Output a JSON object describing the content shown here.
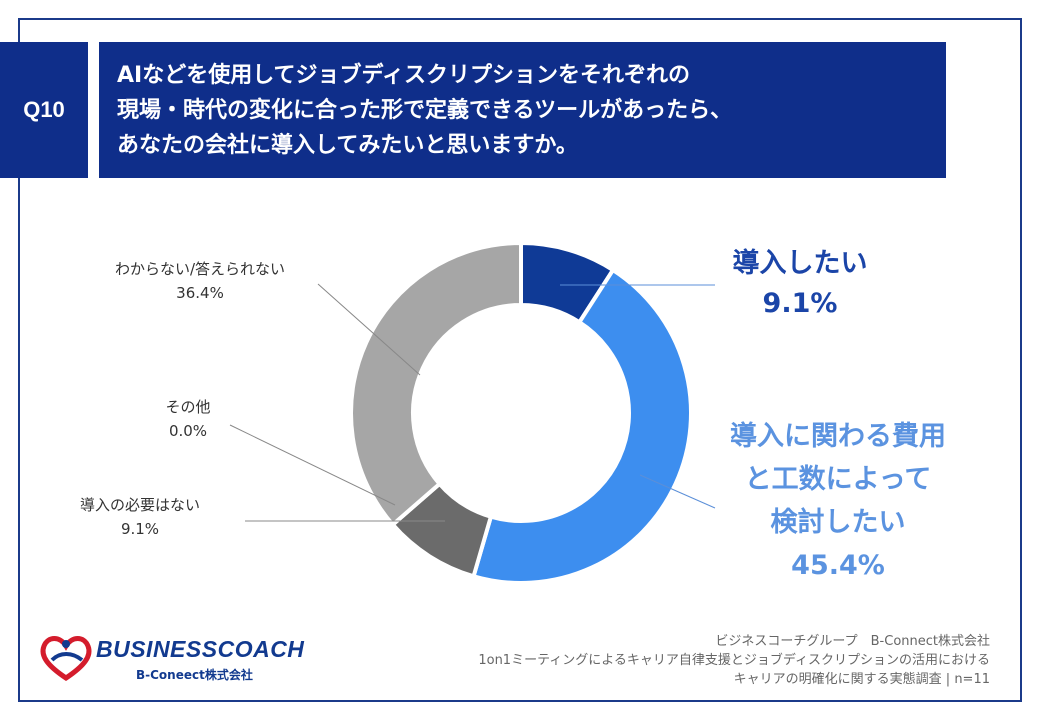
{
  "question": {
    "number": "Q10",
    "lines": [
      "AIなどを使用してジョブディスクリプションをそれぞれの",
      "現場・時代の変化に合った形で定義できるツールがあったら、",
      "あなたの会社に導入してみたいと思いますか。"
    ]
  },
  "chart_data": {
    "type": "pie",
    "donut": true,
    "categories": [
      "導入したい",
      "導入に関わる費用と工数によって検討したい",
      "導入の必要はない",
      "その他",
      "わからない/答えられない"
    ],
    "values": [
      9.1,
      45.4,
      9.1,
      0.0,
      36.4
    ],
    "labels": [
      {
        "lines": [
          "導入したい"
        ],
        "value_text": "9.1%",
        "color": "#1b45a8"
      },
      {
        "lines": [
          "導入に関わる費用",
          "と工数によって",
          "検討したい"
        ],
        "value_text": "45.4%",
        "color": "#5b93e0"
      },
      {
        "lines": [
          "導入の必要はない"
        ],
        "value_text": "9.1%",
        "color": "#333333"
      },
      {
        "lines": [
          "その他"
        ],
        "value_text": "0.0%",
        "color": "#333333"
      },
      {
        "lines": [
          "わからない/答えられない"
        ],
        "value_text": "36.4%",
        "color": "#333333"
      }
    ],
    "colors": [
      "#0f3a96",
      "#3d8eef",
      "#6b6b6b",
      "#8c8c8c",
      "#a6a6a6"
    ]
  },
  "footer": {
    "lines": [
      "ビジネスコーチグループ　B-Connect株式会社",
      "1on1ミーティングによるキャリア自律支援とジョブディスクリプションの活用における",
      "キャリアの明確化に関する実態調査 | n=11"
    ]
  },
  "logo": {
    "name": "BUSINESSCOACH",
    "sub": "B-Coneect株式会社"
  }
}
